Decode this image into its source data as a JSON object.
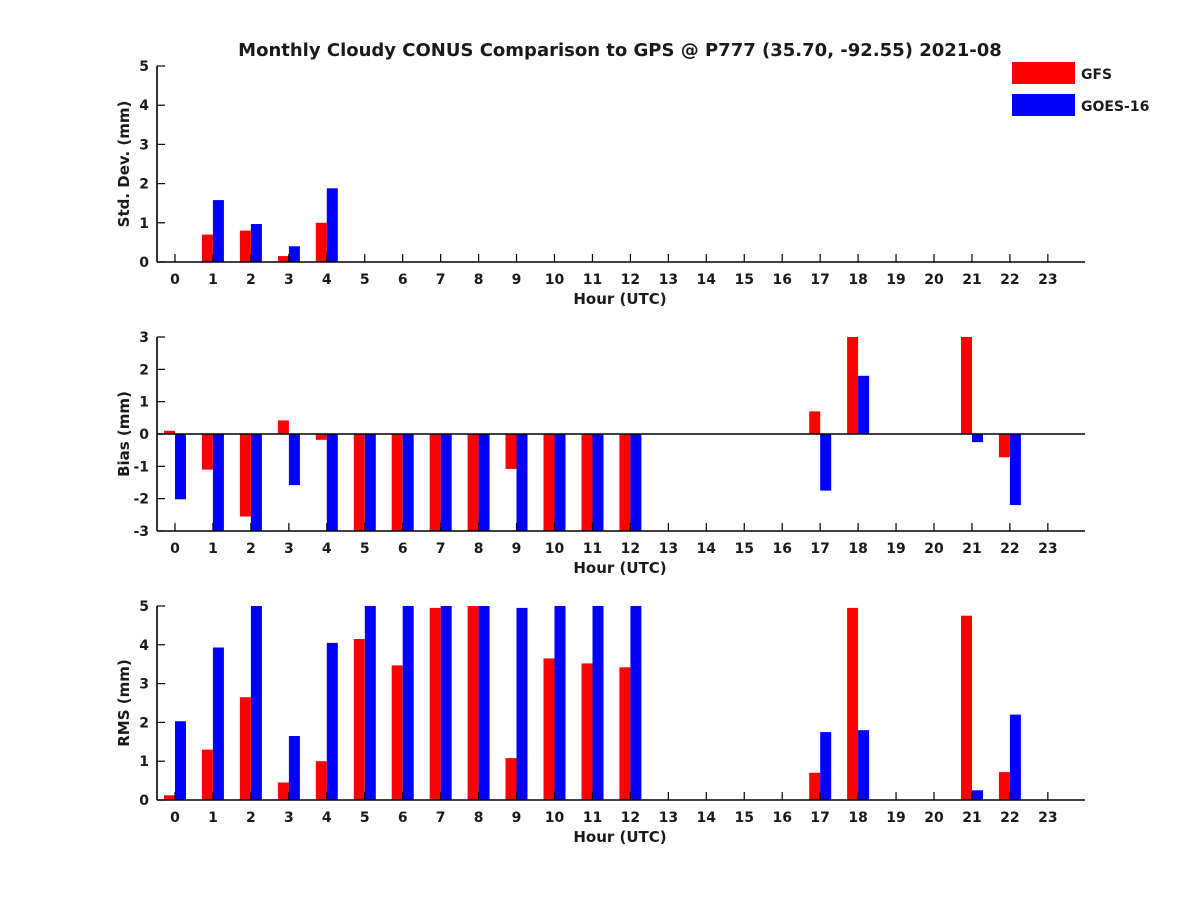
{
  "figure": {
    "title": "Monthly Cloudy CONUS Comparison to GPS @ P777 (35.70, -92.55) 2021-08"
  },
  "legend": {
    "items": [
      {
        "label": "GFS",
        "color": "#ff0000"
      },
      {
        "label": "GOES-16",
        "color": "#0000ff"
      }
    ]
  },
  "chart_data": [
    {
      "type": "bar",
      "title": "",
      "xlabel": "Hour (UTC)",
      "ylabel": "Std. Dev. (mm)",
      "ylim": [
        0,
        5
      ],
      "yticks": [
        "0",
        "1",
        "2",
        "3",
        "4",
        "5"
      ],
      "zero_line": false,
      "categories": [
        "0",
        "1",
        "2",
        "3",
        "4",
        "5",
        "6",
        "7",
        "8",
        "9",
        "10",
        "11",
        "12",
        "13",
        "14",
        "15",
        "16",
        "17",
        "18",
        "19",
        "20",
        "21",
        "22",
        "23"
      ],
      "series": [
        {
          "name": "GFS",
          "color": "#ff0000",
          "values": [
            null,
            0.7,
            0.8,
            0.15,
            1.0,
            null,
            null,
            null,
            null,
            null,
            null,
            null,
            null,
            null,
            null,
            null,
            null,
            null,
            null,
            null,
            null,
            null,
            null,
            null
          ]
        },
        {
          "name": "GOES-16",
          "color": "#0000ff",
          "values": [
            null,
            1.58,
            0.97,
            0.4,
            1.88,
            null,
            null,
            null,
            null,
            null,
            null,
            null,
            null,
            null,
            null,
            null,
            null,
            null,
            null,
            null,
            null,
            null,
            null,
            null
          ]
        }
      ]
    },
    {
      "type": "bar",
      "title": "",
      "xlabel": "Hour (UTC)",
      "ylabel": "Bias (mm)",
      "ylim": [
        -3,
        3
      ],
      "yticks": [
        "-3",
        "-2",
        "-1",
        "0",
        "1",
        "2",
        "3"
      ],
      "zero_line": true,
      "categories": [
        "0",
        "1",
        "2",
        "3",
        "4",
        "5",
        "6",
        "7",
        "8",
        "9",
        "10",
        "11",
        "12",
        "13",
        "14",
        "15",
        "16",
        "17",
        "18",
        "19",
        "20",
        "21",
        "22",
        "23"
      ],
      "series": [
        {
          "name": "GFS",
          "color": "#ff0000",
          "values": [
            0.1,
            -1.1,
            -2.55,
            0.42,
            -0.18,
            -3.0,
            -3.0,
            -3.0,
            -3.0,
            -1.08,
            -3.0,
            -3.0,
            -3.0,
            null,
            null,
            null,
            null,
            0.7,
            3.0,
            null,
            null,
            3.0,
            -0.72,
            null
          ]
        },
        {
          "name": "GOES-16",
          "color": "#0000ff",
          "values": [
            -2.02,
            -3.0,
            -3.0,
            -1.58,
            -3.0,
            -3.0,
            -3.0,
            -3.0,
            -3.0,
            -3.0,
            -3.0,
            -3.0,
            -3.0,
            null,
            null,
            null,
            null,
            -1.75,
            1.8,
            null,
            null,
            -0.25,
            -2.2,
            null
          ]
        }
      ]
    },
    {
      "type": "bar",
      "title": "",
      "xlabel": "Hour (UTC)",
      "ylabel": "RMS (mm)",
      "ylim": [
        0,
        5
      ],
      "yticks": [
        "0",
        "1",
        "2",
        "3",
        "4",
        "5"
      ],
      "zero_line": false,
      "categories": [
        "0",
        "1",
        "2",
        "3",
        "4",
        "5",
        "6",
        "7",
        "8",
        "9",
        "10",
        "11",
        "12",
        "13",
        "14",
        "15",
        "16",
        "17",
        "18",
        "19",
        "20",
        "21",
        "22",
        "23"
      ],
      "series": [
        {
          "name": "GFS",
          "color": "#ff0000",
          "values": [
            0.12,
            1.3,
            2.65,
            0.45,
            1.0,
            4.15,
            3.47,
            4.95,
            5.0,
            1.08,
            3.65,
            3.52,
            3.42,
            null,
            null,
            null,
            null,
            0.7,
            4.95,
            null,
            null,
            4.75,
            0.72,
            null
          ]
        },
        {
          "name": "GOES-16",
          "color": "#0000ff",
          "values": [
            2.03,
            3.93,
            5.0,
            1.65,
            4.05,
            5.0,
            5.0,
            5.0,
            5.0,
            4.95,
            5.0,
            5.0,
            5.0,
            null,
            null,
            null,
            null,
            1.75,
            1.8,
            null,
            null,
            0.25,
            2.2,
            null
          ]
        }
      ]
    }
  ]
}
